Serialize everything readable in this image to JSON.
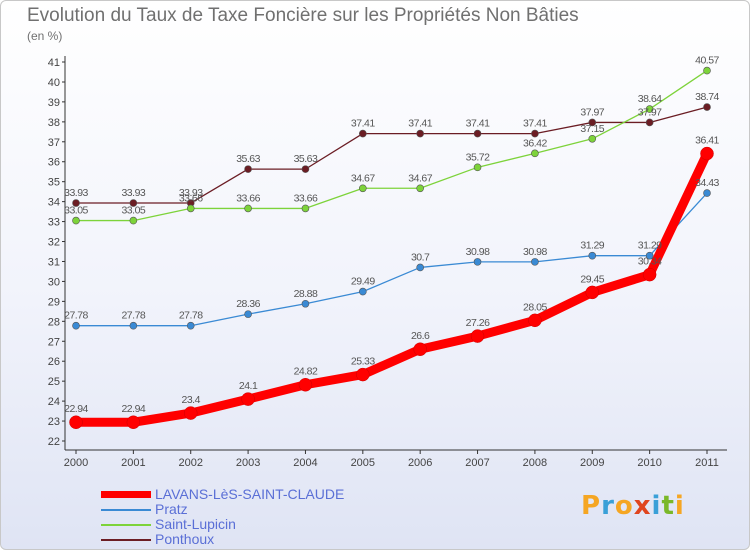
{
  "header": {
    "title": "Evolution du Taux de Taxe Foncière sur les Propriétés Non Bâties",
    "unit": "(en %)"
  },
  "logo": {
    "text": "Proxiti",
    "colors": [
      "#f5a623",
      "#3aa0d8",
      "#f5a623",
      "#e0451f",
      "#3aa0d8",
      "#7ab829",
      "#f5a623"
    ]
  },
  "chart_data": {
    "type": "line",
    "x": [
      "2000",
      "2001",
      "2002",
      "2003",
      "2004",
      "2005",
      "2006",
      "2007",
      "2008",
      "2009",
      "2010",
      "2011"
    ],
    "ylim": [
      22,
      41
    ],
    "yticks": [
      "22",
      "23",
      "24",
      "25",
      "26",
      "27",
      "28",
      "29",
      "30",
      "31",
      "32",
      "33",
      "34",
      "35",
      "36",
      "37",
      "38",
      "39",
      "40",
      "41"
    ],
    "grid": false,
    "legend_position": "bottom-left",
    "series": [
      {
        "name": "LAVANS-LèS-SAINT-CLAUDE",
        "color": "#ff0000",
        "values": [
          22.94,
          22.94,
          23.4,
          24.1,
          24.82,
          25.33,
          26.6,
          27.26,
          28.05,
          29.45,
          30.34,
          36.41
        ],
        "labels": [
          "22.94",
          "22.94",
          "23.4",
          "24.1",
          "24.82",
          "25.33",
          "26.6",
          "27.26",
          "28.05",
          "29.45",
          "30.34",
          "36.41"
        ]
      },
      {
        "name": "Pratz",
        "color": "#3a8ad4",
        "values": [
          27.78,
          27.78,
          27.78,
          28.36,
          28.88,
          29.49,
          30.7,
          30.98,
          30.98,
          31.29,
          31.29,
          34.43
        ],
        "labels": [
          "27.78",
          "27.78",
          "27.78",
          "28.36",
          "28.88",
          "29.49",
          "30.7",
          "30.98",
          "30.98",
          "31.29",
          "31.29",
          "34.43"
        ]
      },
      {
        "name": "Saint-Lupicin",
        "color": "#7dd33a",
        "values": [
          33.05,
          33.05,
          33.66,
          33.66,
          33.66,
          34.67,
          34.67,
          35.72,
          36.42,
          37.15,
          38.64,
          40.57
        ],
        "labels": [
          "33.05",
          "33.05",
          "33.66",
          "33.66",
          "33.66",
          "34.67",
          "34.67",
          "35.72",
          "36.42",
          "37.15",
          "38.64",
          "40.57"
        ]
      },
      {
        "name": "Ponthoux",
        "color": "#6b1d24",
        "values": [
          33.93,
          33.93,
          33.93,
          35.63,
          35.63,
          37.41,
          37.41,
          37.41,
          37.41,
          37.97,
          37.97,
          38.74
        ],
        "labels": [
          "33.93",
          "33.93",
          "33.93",
          "35.63",
          "35.63",
          "37.41",
          "37.41",
          "37.41",
          "37.41",
          "37.97",
          "37.97",
          "38.74"
        ]
      }
    ]
  }
}
